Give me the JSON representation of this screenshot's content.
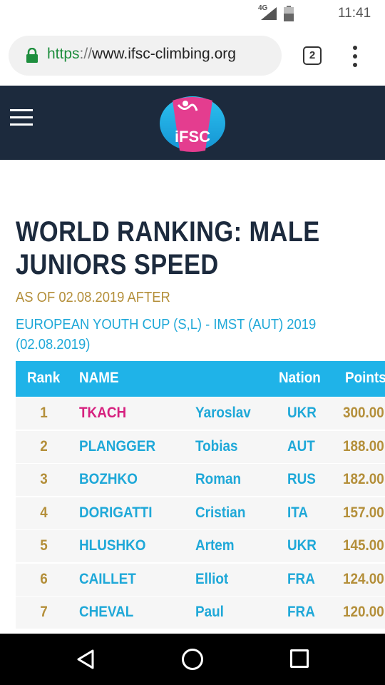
{
  "status_bar": {
    "network": "4G",
    "time": "11:41"
  },
  "browser": {
    "url_scheme": "https",
    "url_separator": "://",
    "url_host": "www.ifsc-climbing.org",
    "tab_count": "2"
  },
  "header": {
    "logo_text": "iFSC"
  },
  "page": {
    "title": "WORLD RANKING: MALE JUNIORS SPEED",
    "as_of": "AS OF 02.08.2019 AFTER",
    "event": "EUROPEAN YOUTH CUP (S,L) - IMST (AUT) 2019 (02.08.2019)"
  },
  "table": {
    "headers": {
      "rank": "Rank",
      "name": "NAME",
      "nation": "Nation",
      "points": "Points"
    },
    "rows": [
      {
        "rank": "1",
        "last": "TKACH",
        "first": "Yaroslav",
        "nation": "UKR",
        "points": "300.00"
      },
      {
        "rank": "2",
        "last": "PLANGGER",
        "first": "Tobias",
        "nation": "AUT",
        "points": "188.00"
      },
      {
        "rank": "3",
        "last": "BOZHKO",
        "first": "Roman",
        "nation": "RUS",
        "points": "182.00"
      },
      {
        "rank": "4",
        "last": "DORIGATTI",
        "first": "Cristian",
        "nation": "ITA",
        "points": "157.00"
      },
      {
        "rank": "5",
        "last": "HLUSHKO",
        "first": "Artem",
        "nation": "UKR",
        "points": "145.00"
      },
      {
        "rank": "6",
        "last": "CAILLET",
        "first": "Elliot",
        "nation": "FRA",
        "points": "124.00"
      },
      {
        "rank": "7",
        "last": "CHEVAL",
        "first": "Paul",
        "nation": "FRA",
        "points": "120.00"
      }
    ]
  },
  "colors": {
    "header_bg": "#1c2a3d",
    "table_header_bg": "#1fb3e8",
    "accent_gold": "#b48f3a",
    "accent_blue": "#1fa8d8",
    "leader_pink": "#d6217f"
  }
}
